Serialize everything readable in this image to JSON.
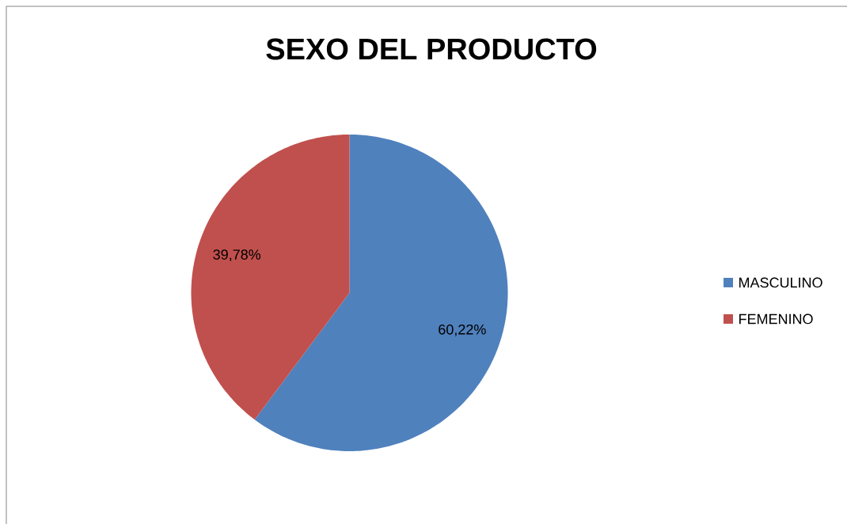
{
  "chart_data": {
    "type": "pie",
    "title": "SEXO DEL PRODUCTO",
    "categories": [
      "MASCULINO",
      "FEMENINO"
    ],
    "values": [
      60.22,
      39.78
    ],
    "colors": [
      "#4f81bd",
      "#c0504d"
    ],
    "value_labels": [
      "60,22%",
      "39,78%"
    ],
    "legend": "right"
  }
}
